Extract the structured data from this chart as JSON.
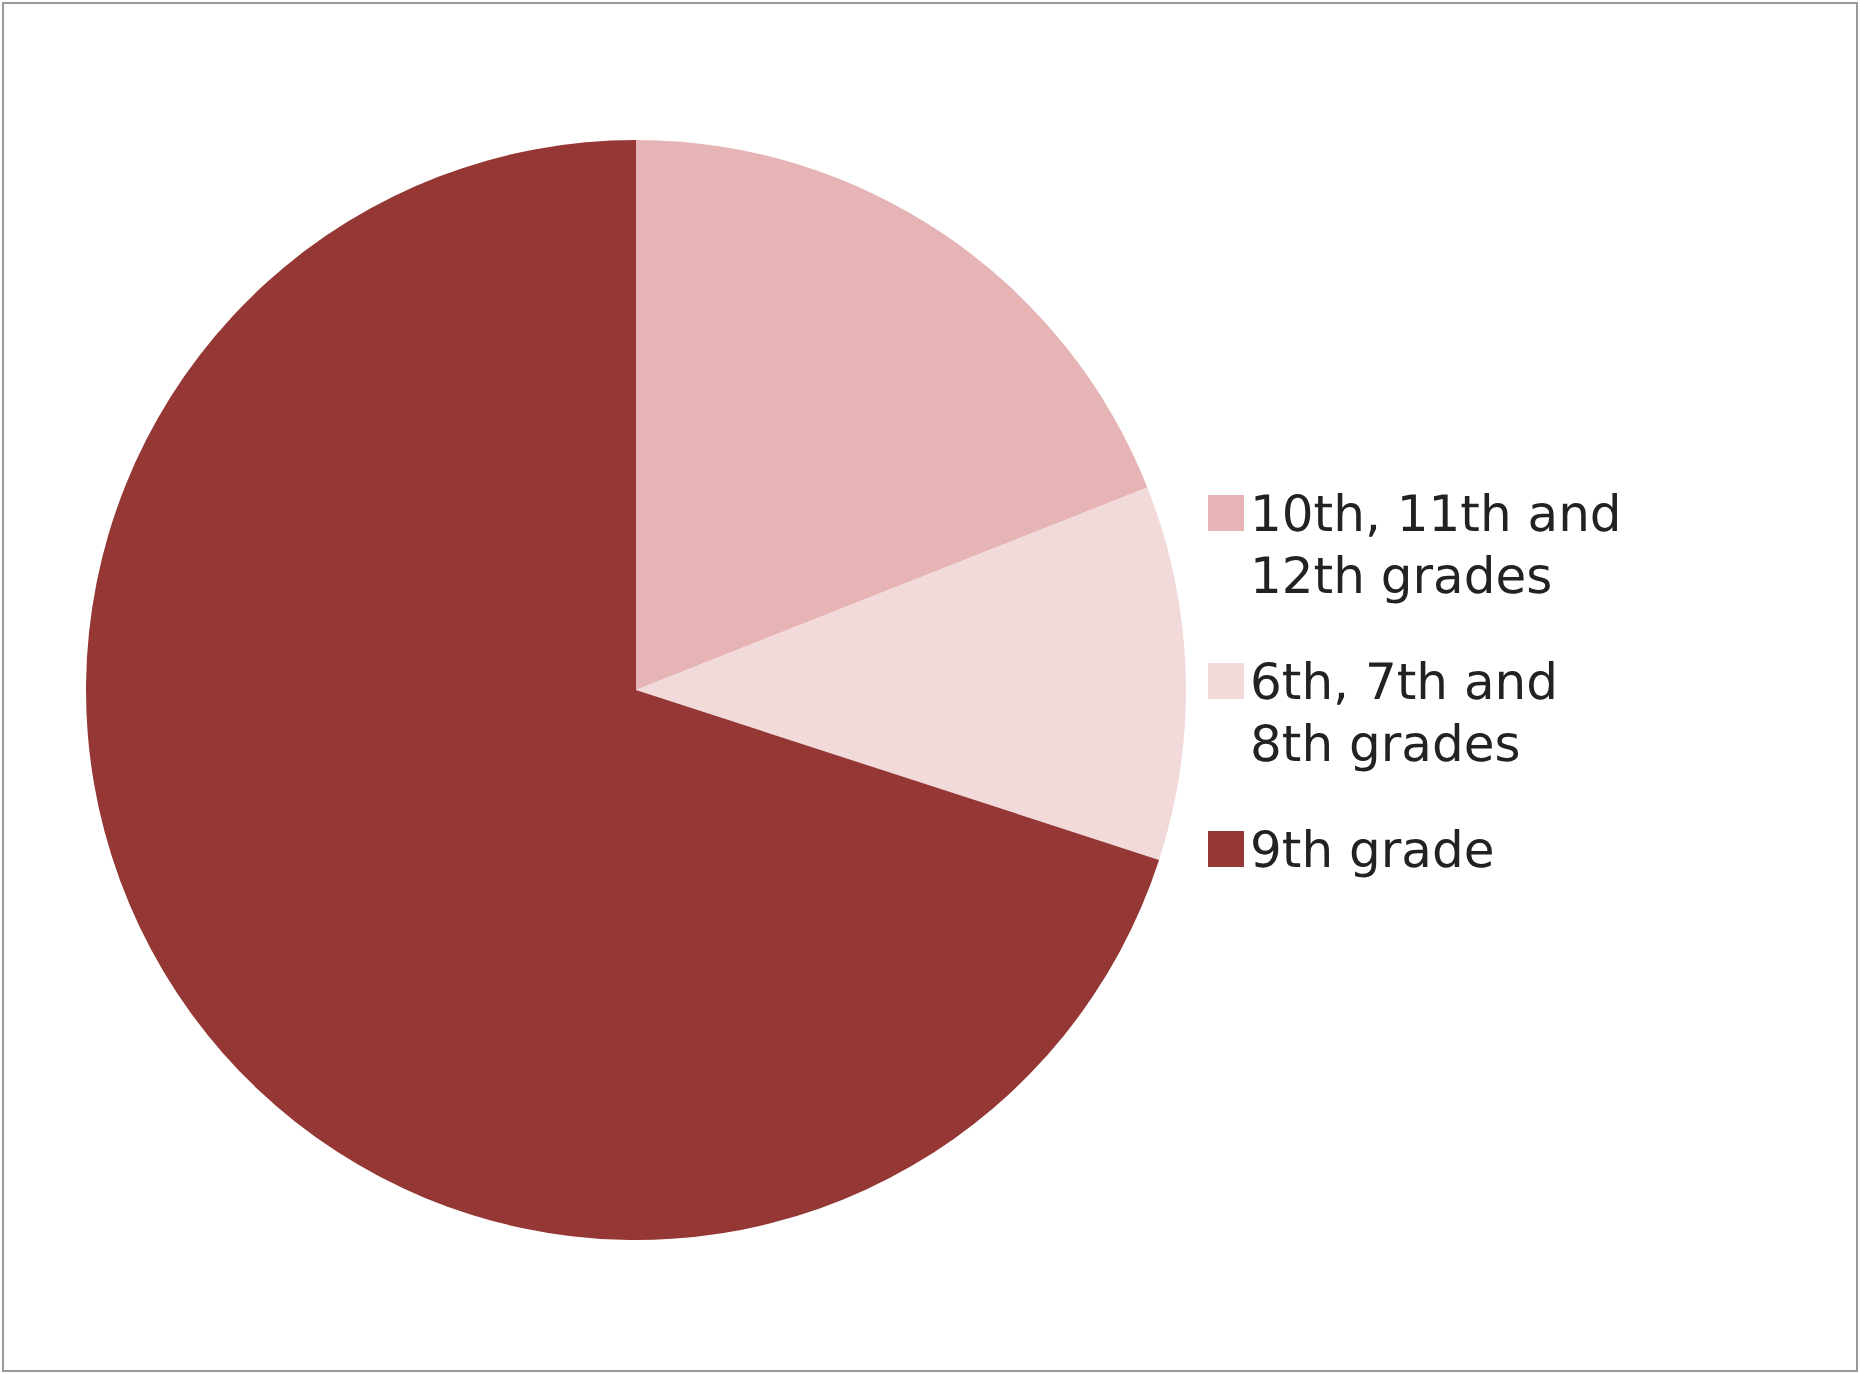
{
  "chart_data": {
    "type": "pie",
    "categories": [
      "10th, 11th and 12th grades",
      "6th, 7th and 8th grades",
      "9th grade"
    ],
    "values": [
      19,
      11,
      70
    ],
    "colors": [
      "#e6b4b4",
      "#f2dada",
      "#953735"
    ],
    "legend": "right"
  }
}
